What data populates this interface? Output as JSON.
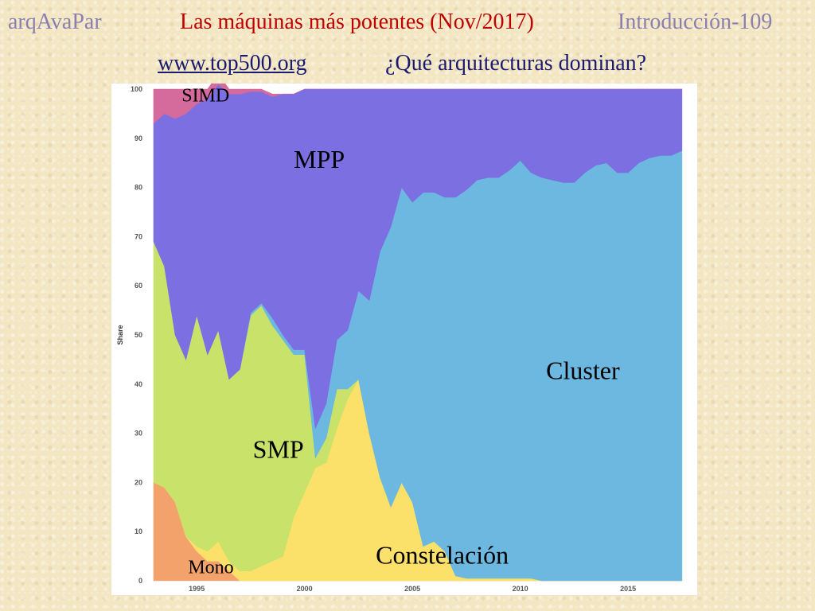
{
  "header": {
    "course": "arqAvaPar",
    "title": "Las máquinas más potentes (Nov/2017)",
    "section": "Introducción-109",
    "link": "www.top500.org",
    "question": "¿Qué arquitecturas dominan?"
  },
  "chart_data": {
    "type": "area",
    "stacked": true,
    "ylabel": "Share",
    "ylim": [
      0,
      100
    ],
    "xlim": [
      1993,
      2017.8
    ],
    "x_ticks": [
      1995,
      2000,
      2005,
      2010,
      2015
    ],
    "y_ticks": [
      0,
      10,
      20,
      30,
      40,
      50,
      60,
      70,
      80,
      90,
      100
    ],
    "x": [
      1993,
      1993.5,
      1994,
      1994.5,
      1995,
      1995.5,
      1996,
      1996.5,
      1997,
      1997.5,
      1998,
      1998.5,
      1999,
      1999.5,
      2000,
      2000.5,
      2001,
      2001.5,
      2002,
      2002.5,
      2003,
      2003.5,
      2004,
      2004.5,
      2005,
      2005.5,
      2006,
      2006.5,
      2007,
      2007.5,
      2008,
      2008.5,
      2009,
      2009.5,
      2010,
      2010.5,
      2011,
      2011.5,
      2012,
      2012.5,
      2013,
      2013.5,
      2014,
      2014.5,
      2015,
      2015.5,
      2016,
      2016.5,
      2017,
      2017.5
    ],
    "series": [
      {
        "name": "Mono",
        "color": "#f4a26c",
        "values": [
          20,
          19,
          16,
          9,
          6,
          4,
          4,
          2,
          0,
          0,
          0,
          0,
          0,
          0,
          0,
          0,
          0,
          0,
          0,
          0,
          0,
          0,
          0,
          0,
          0,
          0,
          0,
          0,
          0,
          0,
          0,
          0,
          0,
          0,
          0,
          0,
          0,
          0,
          0,
          0,
          0,
          0,
          0,
          0,
          0,
          0,
          0,
          0,
          0,
          0
        ]
      },
      {
        "name": "Constelación",
        "color": "#fbe06a",
        "values": [
          0,
          0,
          0,
          0,
          1,
          2,
          4,
          2,
          2,
          2,
          3,
          4,
          5,
          13,
          18,
          23,
          24,
          31,
          37,
          41,
          30,
          21,
          15,
          20,
          16,
          7,
          8,
          6,
          1,
          0.5,
          0.5,
          0.5,
          0.5,
          0.5,
          0.5,
          0.5,
          0,
          0,
          0,
          0,
          0,
          0,
          0,
          0,
          0,
          0,
          0,
          0,
          0,
          0
        ]
      },
      {
        "name": "SMP",
        "color": "#c9e26a",
        "values": [
          49,
          45,
          34,
          36,
          47,
          40,
          43,
          37,
          41,
          52,
          53,
          48,
          44,
          33,
          28,
          2,
          5,
          8,
          2,
          0,
          0,
          0,
          0,
          0,
          0,
          0,
          0,
          0,
          0,
          0,
          0,
          0,
          0,
          0,
          0,
          0,
          0,
          0,
          0,
          0,
          0,
          0,
          0,
          0,
          0,
          0,
          0,
          0,
          0,
          0
        ]
      },
      {
        "name": "Cluster",
        "color": "#6cb8e0",
        "values": [
          0,
          0,
          0,
          0,
          0,
          0,
          0,
          0,
          0,
          0.5,
          0.5,
          1.5,
          1,
          1,
          1,
          6,
          7,
          10,
          12,
          18,
          27,
          46,
          57,
          60,
          61,
          72,
          71,
          72,
          77,
          79,
          81,
          81.5,
          81.5,
          83,
          85,
          82.5,
          82,
          81.5,
          81,
          81,
          83,
          84.5,
          85,
          83,
          83,
          85,
          86,
          86.5,
          86.5,
          87.5
        ]
      },
      {
        "name": "MPP",
        "color": "#7b6fe2",
        "values": [
          24,
          31,
          44,
          50,
          43,
          52,
          50,
          58,
          56,
          45,
          43,
          45,
          49,
          52,
          53,
          69,
          64,
          51,
          49,
          41,
          43,
          33,
          28,
          20,
          23,
          21,
          21,
          22,
          22,
          20.5,
          18.5,
          18,
          18,
          16.5,
          14.5,
          17,
          18,
          18.5,
          19,
          19,
          17,
          15.5,
          15,
          17,
          17,
          15,
          14,
          13.5,
          13.5,
          12.5
        ]
      },
      {
        "name": "SIMD",
        "color": "#d56a9c",
        "values": [
          7,
          5,
          6,
          5,
          3,
          2,
          2,
          1,
          1,
          0.5,
          0.5,
          0.5,
          0,
          0,
          0,
          0,
          0,
          0,
          0,
          0,
          0,
          0,
          0,
          0,
          0,
          0,
          0,
          0,
          0,
          0,
          0,
          0,
          0,
          0,
          0,
          0,
          0,
          0,
          0,
          0,
          0,
          0,
          0,
          0,
          0,
          0,
          0,
          0,
          0,
          0
        ]
      }
    ],
    "annotations": [
      {
        "text": "SIMD",
        "x": 1994.3,
        "y": 97.5,
        "size": "small"
      },
      {
        "text": "MPP",
        "x": 1999.5,
        "y": 84,
        "size": "large"
      },
      {
        "text": "Cluster",
        "x": 2011.2,
        "y": 41,
        "size": "large"
      },
      {
        "text": "SMP",
        "x": 1997.6,
        "y": 25,
        "size": "large"
      },
      {
        "text": "Constelación",
        "x": 2003.3,
        "y": 3.5,
        "size": "large"
      },
      {
        "text": "Mono",
        "x": 1994.6,
        "y": 1.5,
        "size": "small"
      }
    ]
  }
}
